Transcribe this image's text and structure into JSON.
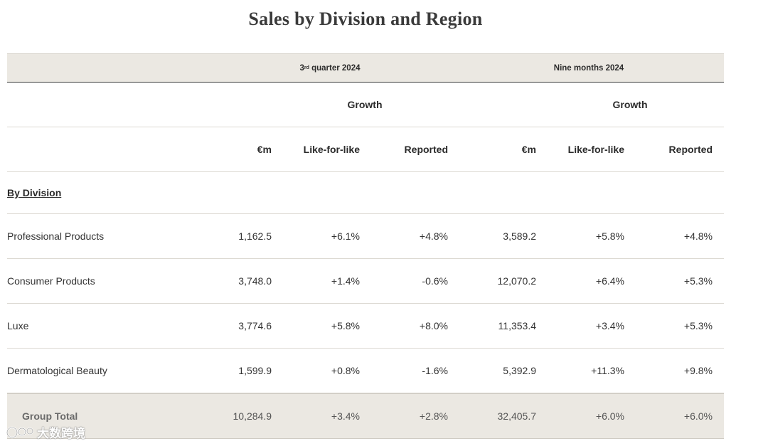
{
  "title": "Sales by Division and Region",
  "periods": {
    "q3": {
      "prefix": "3",
      "sup": "rd",
      "suffix": " quarter 2024"
    },
    "nine": "Nine months 2024"
  },
  "growth_label": "Growth",
  "columns": [
    "€m",
    "Like-for-like",
    "Reported",
    "€m",
    "Like-for-like",
    "Reported"
  ],
  "section_title": "By Division",
  "rows": [
    {
      "label": "Professional Products",
      "q3_em": "1,162.5",
      "q3_lfl": "+6.1%",
      "q3_rep": "+4.8%",
      "nm_em": "3,589.2",
      "nm_lfl": "+5.8%",
      "nm_rep": "+4.8%"
    },
    {
      "label": "Consumer Products",
      "q3_em": "3,748.0",
      "q3_lfl": "+1.4%",
      "q3_rep": "-0.6%",
      "nm_em": "12,070.2",
      "nm_lfl": "+6.4%",
      "nm_rep": "+5.3%"
    },
    {
      "label": "Luxe",
      "q3_em": "3,774.6",
      "q3_lfl": "+5.8%",
      "q3_rep": "+8.0%",
      "nm_em": "11,353.4",
      "nm_lfl": "+3.4%",
      "nm_rep": "+5.3%"
    },
    {
      "label": "Dermatological Beauty",
      "q3_em": "1,599.9",
      "q3_lfl": "+0.8%",
      "q3_rep": "-1.6%",
      "nm_em": "5,392.9",
      "nm_lfl": "+11.3%",
      "nm_rep": "+9.8%"
    }
  ],
  "total": {
    "label": "Group Total",
    "q3_em": "10,284.9",
    "q3_lfl": "+3.4%",
    "q3_rep": "+2.8%",
    "nm_em": "32,405.7",
    "nm_lfl": "+6.0%",
    "nm_rep": "+6.0%"
  },
  "watermark": {
    "text": "大数跨境",
    "icon": "watermark-logo-icon"
  },
  "colors": {
    "header_bg": "#ebe8e2",
    "rule": "#dcd9d2",
    "text": "#2b2b2b"
  }
}
